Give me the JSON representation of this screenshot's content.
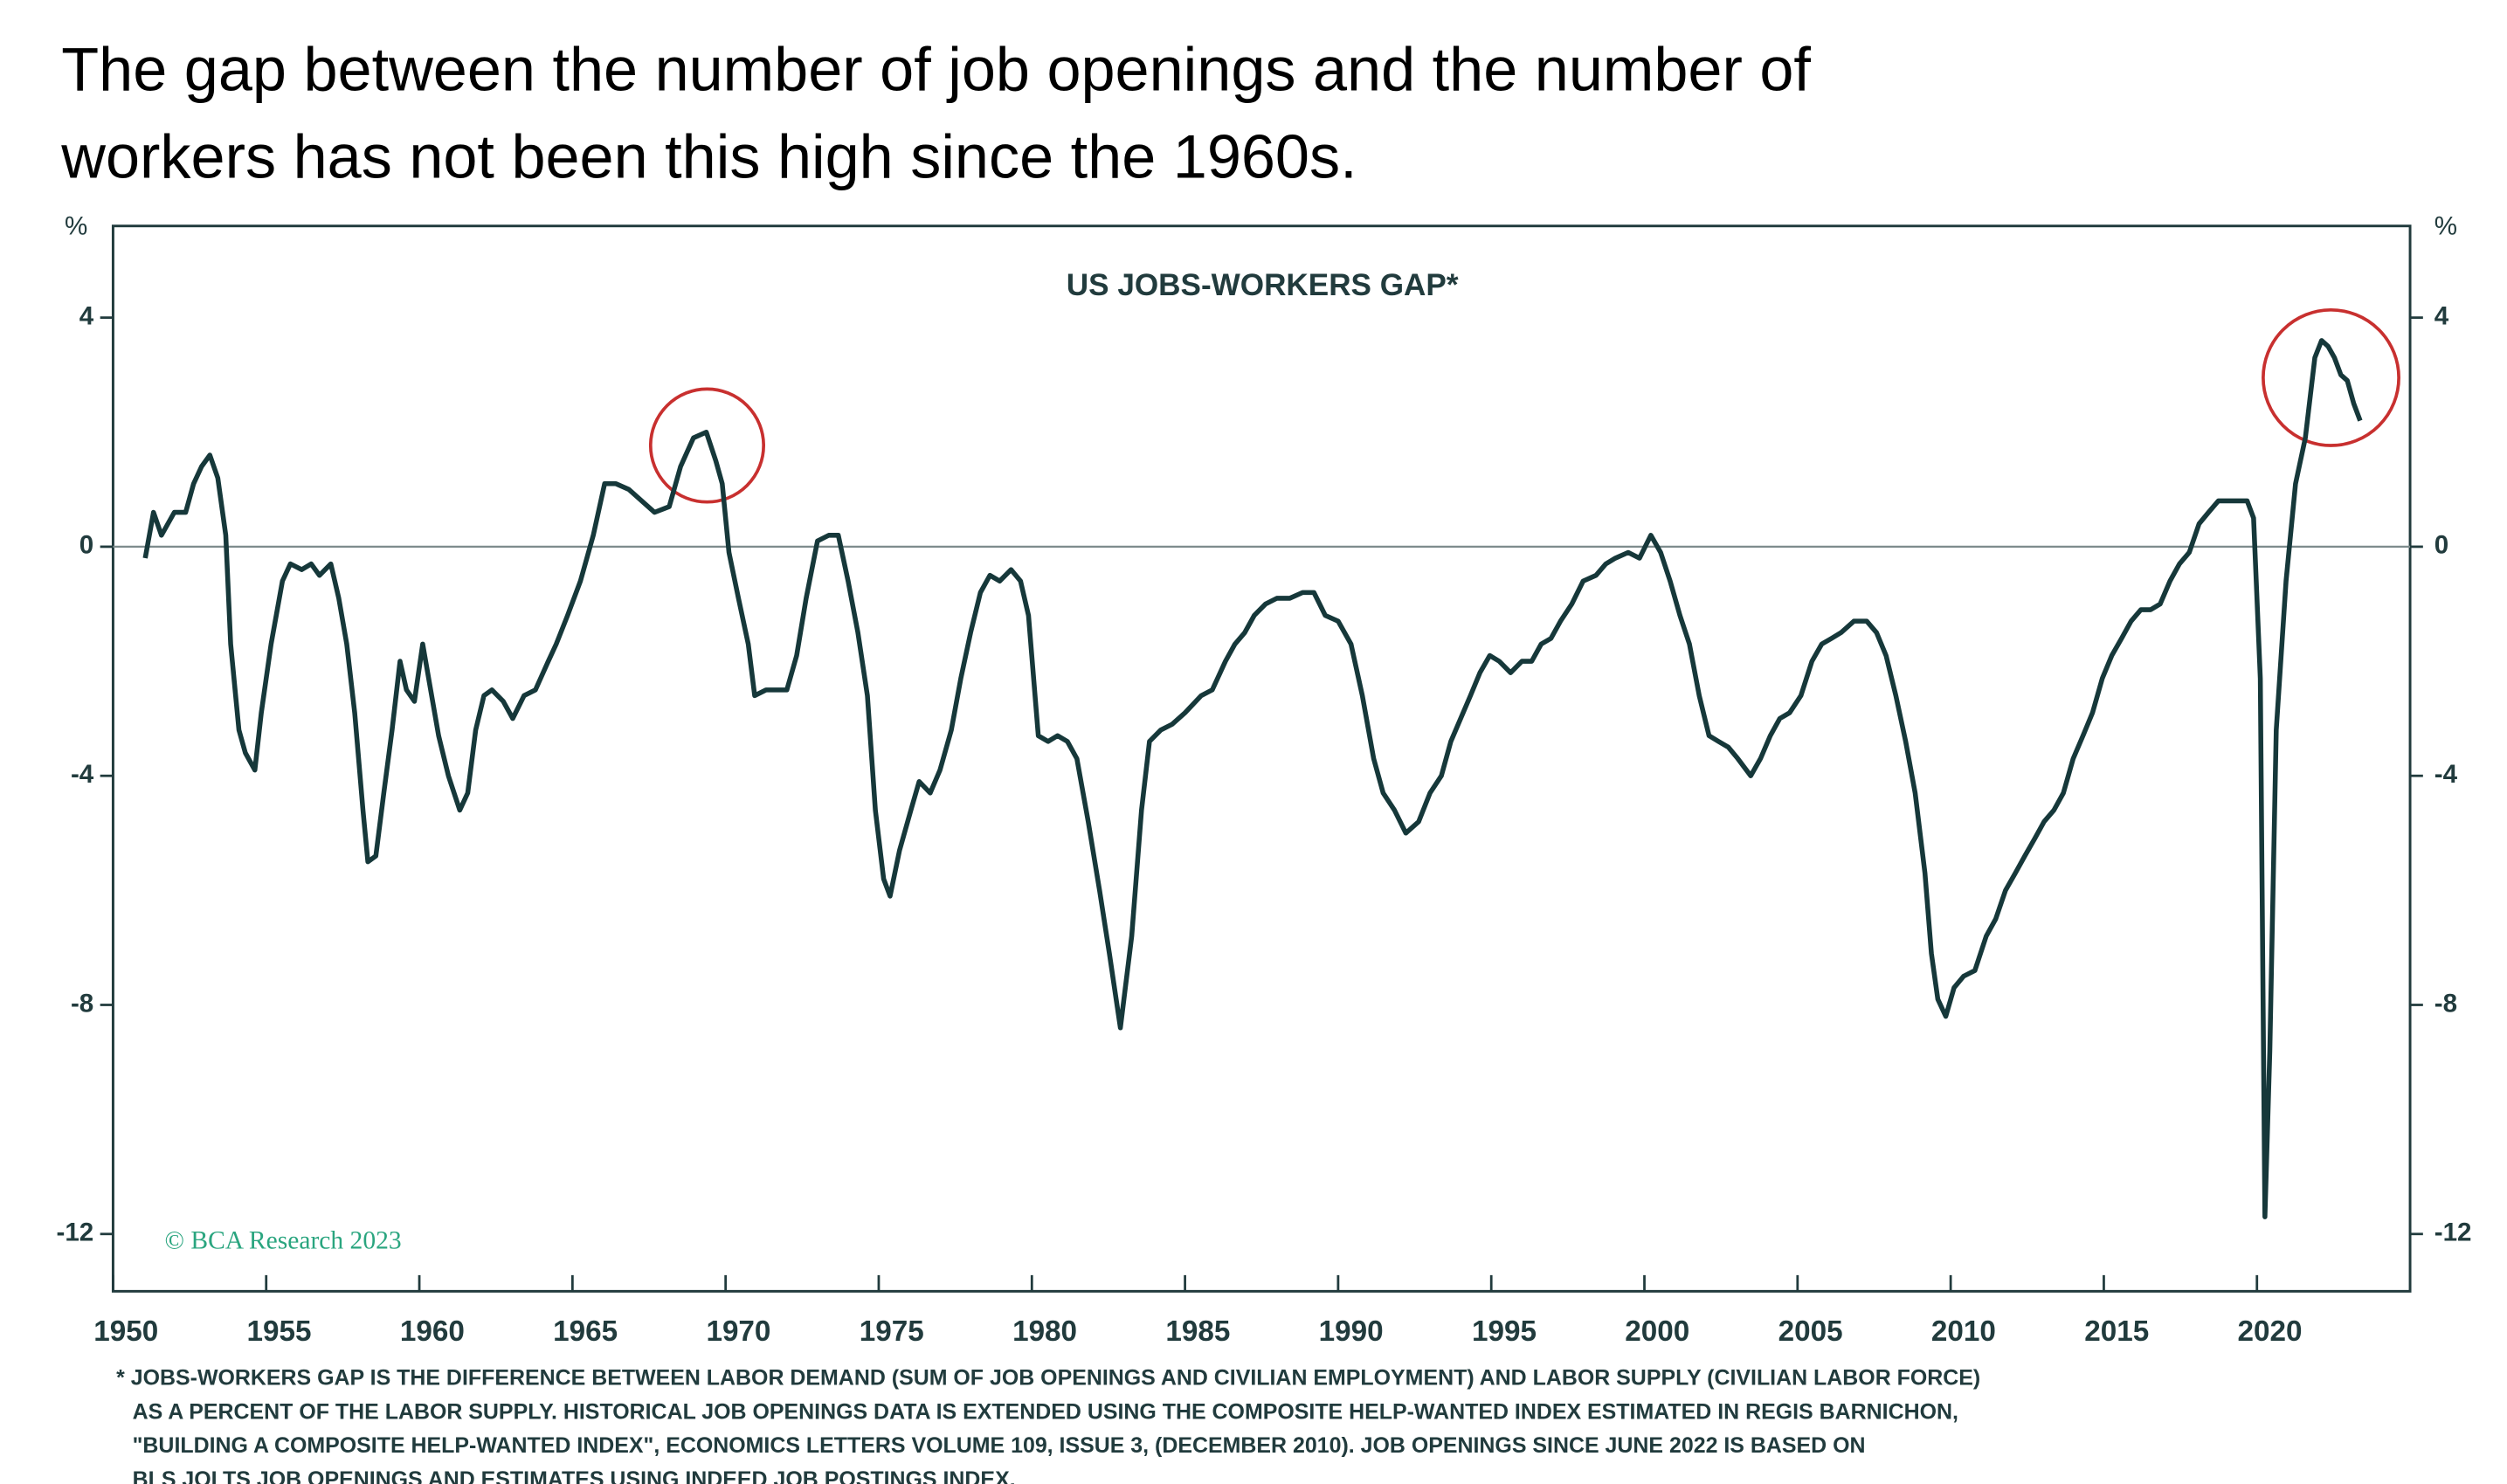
{
  "heading": [
    "The gap between the number of job openings and the number of",
    "workers has not been this high since the 1960s."
  ],
  "chart_data": {
    "type": "line",
    "title": "US JOBS-WORKERS GAP*",
    "y_label": "%",
    "y2_label": "%",
    "watermark": "© BCA Research 2023",
    "footnote": [
      "* JOBS-WORKERS GAP IS THE DIFFERENCE BETWEEN LABOR DEMAND (SUM OF JOB OPENINGS AND CIVILIAN EMPLOYMENT) AND LABOR SUPPLY (CIVILIAN LABOR FORCE)",
      "AS A PERCENT OF THE LABOR SUPPLY. HISTORICAL JOB OPENINGS DATA IS EXTENDED USING THE COMPOSITE HELP-WANTED INDEX ESTIMATED IN REGIS BARNICHON,",
      "\"BUILDING A COMPOSITE HELP-WANTED INDEX\", ECONOMICS LETTERS VOLUME 109, ISSUE 3, (DECEMBER 2010). JOB OPENINGS SINCE JUNE 2022 IS BASED ON",
      "BLS JOLTS JOB OPENINGS AND ESTIMATES USING INDEED JOB POSTINGS INDEX."
    ],
    "xlim": [
      1950,
      2025
    ],
    "xticks": [
      1950,
      1955,
      1960,
      1965,
      1970,
      1975,
      1980,
      1985,
      1990,
      1995,
      2000,
      2005,
      2010,
      2015,
      2020
    ],
    "ylim": [
      -13,
      5.6
    ],
    "yticks": [
      -12,
      -8,
      -4,
      0,
      4
    ],
    "y2lim": [
      -13,
      5.6
    ],
    "y2ticks": [
      -12,
      -8,
      -4,
      0,
      4
    ],
    "zero_line": true,
    "x": [
      1951.05,
      1951.32,
      1951.58,
      1952.0,
      1952.37,
      1952.63,
      1952.89,
      1953.16,
      1953.42,
      1953.68,
      1953.84,
      1954.11,
      1954.32,
      1954.63,
      1954.84,
      1955.16,
      1955.53,
      1955.79,
      1956.16,
      1956.47,
      1956.74,
      1957.11,
      1957.37,
      1957.63,
      1957.89,
      1958.16,
      1958.32,
      1958.58,
      1958.84,
      1959.11,
      1959.37,
      1959.58,
      1959.84,
      1960.11,
      1960.37,
      1960.63,
      1960.95,
      1961.32,
      1961.58,
      1961.84,
      1962.11,
      1962.37,
      1962.74,
      1963.05,
      1963.42,
      1963.79,
      1964.21,
      1964.47,
      1964.84,
      1965.26,
      1965.68,
      1966.05,
      1966.42,
      1966.84,
      1967.26,
      1967.68,
      1968.16,
      1968.53,
      1968.95,
      1969.37,
      1969.68,
      1969.89,
      1970.11,
      1970.42,
      1970.74,
      1970.95,
      1971.32,
      1971.68,
      1972.0,
      1972.32,
      1972.63,
      1973.0,
      1973.37,
      1973.68,
      1974.0,
      1974.32,
      1974.63,
      1974.89,
      1975.16,
      1975.37,
      1975.68,
      1976.05,
      1976.32,
      1976.68,
      1977.0,
      1977.37,
      1977.68,
      1978.0,
      1978.32,
      1978.63,
      1978.95,
      1979.32,
      1979.63,
      1979.89,
      1980.21,
      1980.53,
      1980.84,
      1981.16,
      1981.47,
      1981.84,
      1982.21,
      1982.53,
      1982.89,
      1983.26,
      1983.58,
      1983.84,
      1984.21,
      1984.58,
      1985.0,
      1985.53,
      1985.89,
      1986.32,
      1986.63,
      1986.95,
      1987.26,
      1987.63,
      1988.0,
      1988.42,
      1988.84,
      1989.21,
      1989.58,
      1990.0,
      1990.42,
      1990.79,
      1991.16,
      1991.47,
      1991.84,
      1992.21,
      1992.63,
      1993.0,
      1993.37,
      1993.68,
      1994.0,
      1994.32,
      1994.63,
      1994.95,
      1995.26,
      1995.63,
      1996.0,
      1996.32,
      1996.63,
      1996.95,
      1997.26,
      1997.63,
      1998.0,
      1998.42,
      1998.74,
      1999.05,
      1999.47,
      1999.84,
      2000.21,
      2000.53,
      2000.84,
      2001.16,
      2001.47,
      2001.79,
      2002.11,
      2002.42,
      2002.74,
      2003.05,
      2003.47,
      2003.79,
      2004.11,
      2004.42,
      2004.74,
      2005.11,
      2005.47,
      2005.79,
      2006.11,
      2006.42,
      2006.84,
      2007.26,
      2007.58,
      2007.89,
      2008.21,
      2008.53,
      2008.84,
      2009.16,
      2009.37,
      2009.58,
      2009.84,
      2010.11,
      2010.42,
      2010.79,
      2011.16,
      2011.47,
      2011.79,
      2012.11,
      2012.42,
      2012.74,
      2013.05,
      2013.37,
      2013.68,
      2014.0,
      2014.32,
      2014.63,
      2014.95,
      2015.26,
      2015.58,
      2015.89,
      2016.21,
      2016.53,
      2016.84,
      2017.16,
      2017.47,
      2017.79,
      2018.11,
      2018.42,
      2018.74,
      2019.05,
      2019.37,
      2019.68,
      2019.89,
      2020.11,
      2020.26,
      2020.42,
      2020.63,
      2020.95,
      2021.26,
      2021.58,
      2021.89,
      2022.11,
      2022.32,
      2022.53,
      2022.74,
      2022.95,
      2023.16,
      2023.37
    ],
    "series": [
      {
        "name": "US jobs-workers gap",
        "color": "#16383a",
        "values": [
          -0.2,
          0.6,
          0.2,
          0.6,
          0.6,
          1.1,
          1.4,
          1.6,
          1.2,
          0.2,
          -1.7,
          -3.2,
          -3.6,
          -3.9,
          -2.9,
          -1.7,
          -0.6,
          -0.3,
          -0.4,
          -0.3,
          -0.5,
          -0.3,
          -0.9,
          -1.7,
          -2.9,
          -4.6,
          -5.5,
          -5.4,
          -4.3,
          -3.2,
          -2.0,
          -2.5,
          -2.7,
          -1.7,
          -2.5,
          -3.3,
          -4.0,
          -4.6,
          -4.3,
          -3.2,
          -2.6,
          -2.5,
          -2.7,
          -3.0,
          -2.6,
          -2.5,
          -2.0,
          -1.7,
          -1.2,
          -0.6,
          0.2,
          1.1,
          1.1,
          1.0,
          0.8,
          0.6,
          0.7,
          1.4,
          1.9,
          2.0,
          1.5,
          1.1,
          -0.1,
          -0.9,
          -1.7,
          -2.6,
          -2.5,
          -2.5,
          -2.5,
          -1.9,
          -0.9,
          0.1,
          0.2,
          0.2,
          -0.6,
          -1.5,
          -2.6,
          -4.6,
          -5.8,
          -6.1,
          -5.3,
          -4.6,
          -4.1,
          -4.3,
          -3.9,
          -3.2,
          -2.3,
          -1.5,
          -0.8,
          -0.5,
          -0.6,
          -0.4,
          -0.6,
          -1.2,
          -3.3,
          -3.4,
          -3.3,
          -3.4,
          -3.7,
          -4.8,
          -6.0,
          -7.1,
          -8.4,
          -6.8,
          -4.6,
          -3.4,
          -3.2,
          -3.1,
          -2.9,
          -2.6,
          -2.5,
          -2.0,
          -1.7,
          -1.5,
          -1.2,
          -1.0,
          -0.9,
          -0.9,
          -0.8,
          -0.8,
          -1.2,
          -1.3,
          -1.7,
          -2.6,
          -3.7,
          -4.3,
          -4.6,
          -5.0,
          -4.8,
          -4.3,
          -4.0,
          -3.4,
          -3.0,
          -2.6,
          -2.2,
          -1.9,
          -2.0,
          -2.2,
          -2.0,
          -2.0,
          -1.7,
          -1.6,
          -1.3,
          -1.0,
          -0.6,
          -0.5,
          -0.3,
          -0.2,
          -0.1,
          -0.2,
          0.2,
          -0.1,
          -0.6,
          -1.2,
          -1.7,
          -2.6,
          -3.3,
          -3.4,
          -3.5,
          -3.7,
          -4.0,
          -3.7,
          -3.3,
          -3.0,
          -2.9,
          -2.6,
          -2.0,
          -1.7,
          -1.6,
          -1.5,
          -1.3,
          -1.3,
          -1.5,
          -1.9,
          -2.6,
          -3.4,
          -4.3,
          -5.7,
          -7.1,
          -7.9,
          -8.2,
          -7.7,
          -7.5,
          -7.4,
          -6.8,
          -6.5,
          -6.0,
          -5.7,
          -5.4,
          -5.1,
          -4.8,
          -4.6,
          -4.3,
          -3.7,
          -3.3,
          -2.9,
          -2.3,
          -1.9,
          -1.6,
          -1.3,
          -1.1,
          -1.1,
          -1.0,
          -0.6,
          -0.3,
          -0.1,
          0.4,
          0.6,
          0.8,
          0.8,
          0.8,
          0.8,
          0.5,
          -2.3,
          -11.7,
          -8.8,
          -3.2,
          -0.6,
          1.1,
          1.9,
          3.3,
          3.6,
          3.5,
          3.3,
          3.0,
          2.9,
          2.5,
          2.2
        ]
      }
    ]
  }
}
